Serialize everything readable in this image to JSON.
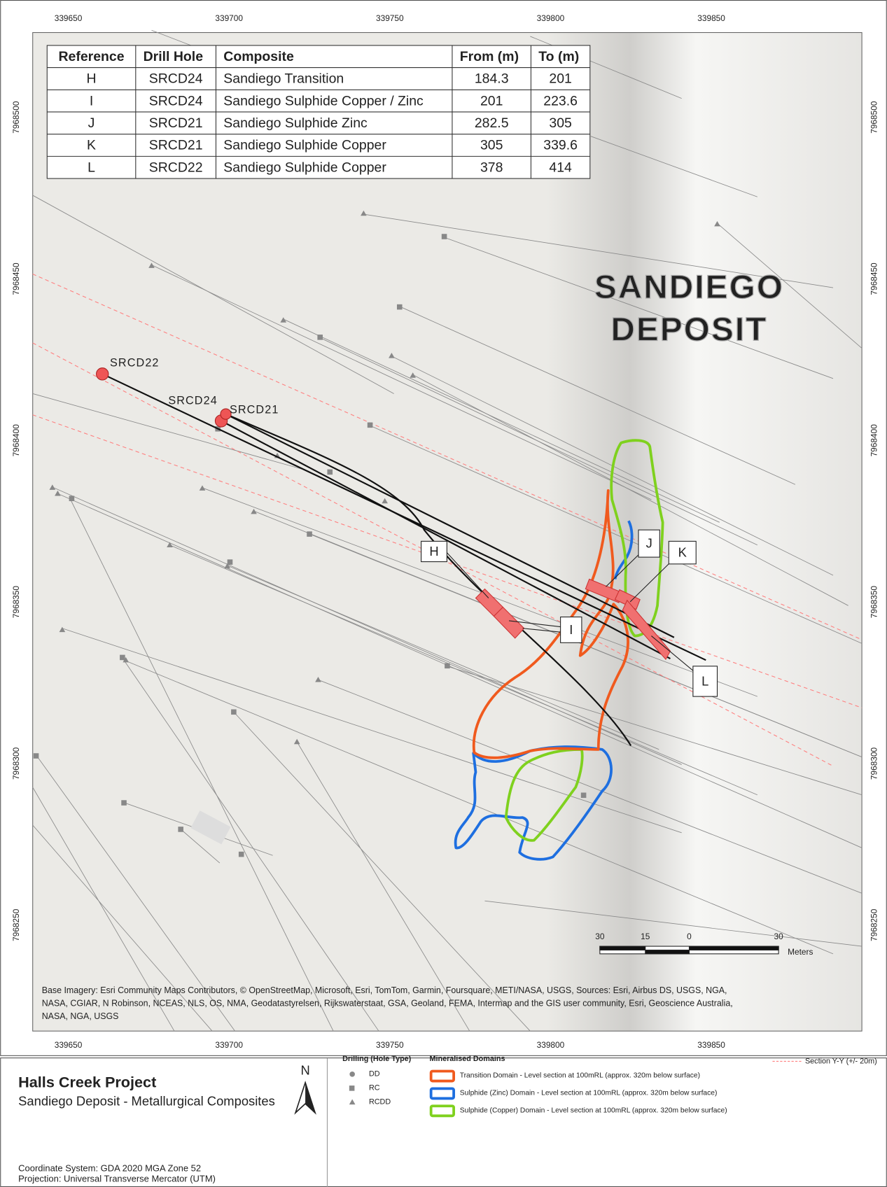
{
  "map": {
    "x_ticks": [
      "339650",
      "339700",
      "339750",
      "339800",
      "339850"
    ],
    "y_ticks": [
      "7968500",
      "7968450",
      "7968400",
      "7968350",
      "7968300",
      "7968250"
    ],
    "watermark": [
      "SANDIEGO",
      "DEPOSIT"
    ],
    "drill_holes": [
      "SRCD22",
      "SRCD24",
      "SRCD21"
    ],
    "callouts": [
      "H",
      "I",
      "J",
      "K",
      "L"
    ],
    "scale_bar": {
      "labels": [
        "30",
        "15",
        "0",
        "30"
      ],
      "unit": "Meters"
    },
    "attribution": [
      "Base Imagery: Esri Community Maps Contributors, © OpenStreetMap, Microsoft, Esri, TomTom, Garmin, Foursquare, METI/NASA, USGS, Sources: Esri, Airbus DS, USGS, NGA,",
      "NASA, CGIAR, N Robinson, NCEAS, NLS, OS, NMA, Geodatastyrelsen, Rijkswaterstaat, GSA, Geoland, FEMA, Intermap and the GIS user community, Esri, Geoscience Australia,",
      "NASA, NGA, USGS"
    ]
  },
  "table": {
    "header": [
      "Reference",
      "Drill Hole",
      "Composite",
      "From (m)",
      "To (m)"
    ],
    "rows": [
      [
        "H",
        "SRCD24",
        "Sandiego Transition",
        "184.3",
        "201"
      ],
      [
        "I",
        "SRCD24",
        "Sandiego Sulphide Copper / Zinc",
        "201",
        "223.6"
      ],
      [
        "J",
        "SRCD21",
        "Sandiego Sulphide Zinc",
        "282.5",
        "305"
      ],
      [
        "K",
        "SRCD21",
        "Sandiego Sulphide Copper",
        "305",
        "339.6"
      ],
      [
        "L",
        "SRCD22",
        "Sandiego Sulphide Copper",
        "378",
        "414"
      ]
    ]
  },
  "title_block": {
    "title": "Halls Creek Project",
    "subtitle": "Sandiego Deposit - Metallurgical Composites",
    "north": "N",
    "coordinate_system": "Coordinate System: GDA 2020 MGA Zone 52",
    "projection": "Projection: Universal Transverse Mercator (UTM)"
  },
  "legend": {
    "drilling_title": "Drilling (Hole Type)",
    "drilling": [
      "DD",
      "RC",
      "RCDD"
    ],
    "domains_title": "Mineralised Domains",
    "domains": [
      {
        "label": "Transition Domain - Level section at 100mRL (approx. 320m below surface)",
        "color": "#f05a1e"
      },
      {
        "label": "Sulphide (Zinc) Domain - Level section at 100mRL (approx. 320m below surface)",
        "color": "#1e6fe0"
      },
      {
        "label": "Sulphide (Copper) Domain - Level section at 100mRL (approx. 320m below surface)",
        "color": "#7fd11e"
      }
    ],
    "section": "Section Y-Y (+/- 20m)"
  }
}
